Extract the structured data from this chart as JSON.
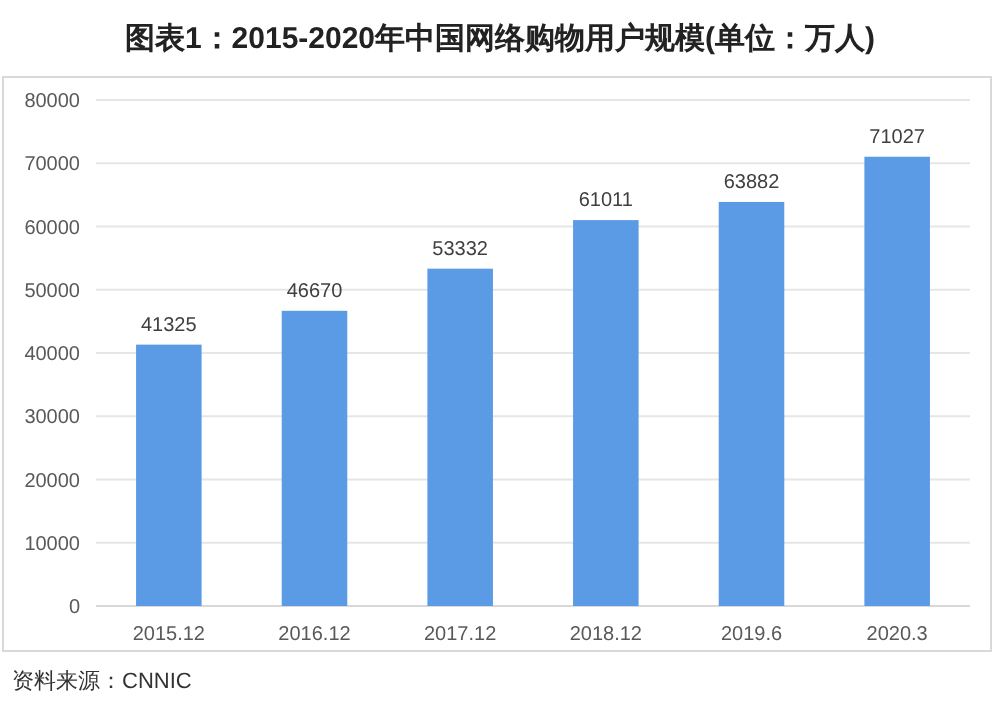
{
  "chart_data": {
    "type": "bar",
    "title": "图表1：2015-2020年中国网络购物用户规模(单位：万人)",
    "categories": [
      "2015.12",
      "2016.12",
      "2017.12",
      "2018.12",
      "2019.6",
      "2020.3"
    ],
    "values": [
      41325,
      46670,
      53332,
      61011,
      63882,
      71027
    ],
    "color": "#5b9be6",
    "ylim": [
      0,
      80000
    ],
    "yticks": [
      0,
      10000,
      20000,
      30000,
      40000,
      50000,
      60000,
      70000,
      80000
    ],
    "grid": "y",
    "data_labels": true,
    "annotations": [
      "资料来源：CNNIC"
    ]
  }
}
